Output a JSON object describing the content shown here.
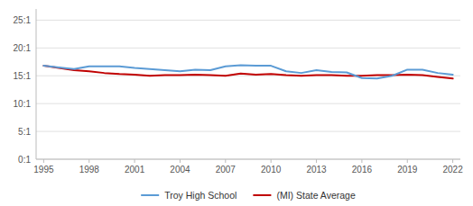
{
  "chart_data": {
    "type": "line",
    "x": [
      1995,
      1996,
      1997,
      1998,
      1999,
      2000,
      2001,
      2002,
      2003,
      2004,
      2005,
      2006,
      2007,
      2008,
      2009,
      2010,
      2011,
      2012,
      2013,
      2014,
      2015,
      2016,
      2017,
      2018,
      2019,
      2020,
      2021,
      2022
    ],
    "series": [
      {
        "name": "Troy High School",
        "color": "#5b9bd5",
        "values": [
          16.8,
          16.5,
          16.2,
          16.7,
          16.7,
          16.7,
          16.4,
          16.2,
          16.0,
          15.8,
          16.1,
          16.0,
          16.7,
          16.9,
          16.8,
          16.8,
          15.8,
          15.5,
          16.0,
          15.7,
          15.6,
          14.6,
          14.5,
          15.0,
          16.1,
          16.1,
          15.5,
          15.2
        ]
      },
      {
        "name": "(MI) State Average",
        "color": "#c00000",
        "values": [
          16.8,
          16.4,
          16.0,
          15.8,
          15.5,
          15.3,
          15.2,
          15.0,
          15.1,
          15.1,
          15.2,
          15.1,
          15.0,
          15.4,
          15.2,
          15.3,
          15.1,
          15.0,
          15.1,
          15.1,
          15.0,
          15.0,
          15.1,
          15.1,
          15.2,
          15.1,
          14.8,
          14.5
        ]
      }
    ],
    "xlim": [
      1994.5,
      2022.5
    ],
    "xticks": [
      1995,
      1998,
      2001,
      2004,
      2007,
      2010,
      2013,
      2016,
      2019,
      2022
    ],
    "ylim": [
      0,
      27
    ],
    "yticks": [
      {
        "value": 0,
        "label": "0:1"
      },
      {
        "value": 5,
        "label": "5:1"
      },
      {
        "value": 10,
        "label": "10:1"
      },
      {
        "value": 15,
        "label": "15:1"
      },
      {
        "value": 20,
        "label": "20:1"
      },
      {
        "value": 25,
        "label": "25:1"
      }
    ],
    "grid": "y",
    "legend": "bottom"
  }
}
